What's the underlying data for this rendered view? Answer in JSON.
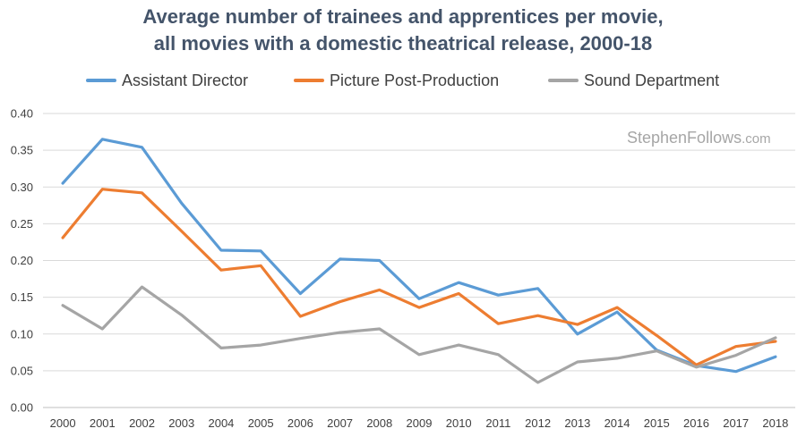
{
  "chart_data": {
    "type": "line",
    "title_line1": "Average number of trainees and apprentices per movie,",
    "title_line2": "all movies with a domestic theatrical release, 2000-18",
    "watermark": "StephenFollows",
    "watermark_suffix": ".com",
    "xlabel": "",
    "ylabel": "",
    "ylim": [
      0,
      0.4
    ],
    "yticks": [
      "0.00",
      "0.05",
      "0.10",
      "0.15",
      "0.20",
      "0.25",
      "0.30",
      "0.35",
      "0.40"
    ],
    "grid": true,
    "legend_position": "top",
    "categories": [
      "2000",
      "2001",
      "2002",
      "2003",
      "2004",
      "2005",
      "2006",
      "2007",
      "2008",
      "2009",
      "2010",
      "2011",
      "2012",
      "2013",
      "2014",
      "2015",
      "2016",
      "2017",
      "2018"
    ],
    "series": [
      {
        "name": "Assistant Director",
        "color": "#5b9bd5",
        "values": [
          0.305,
          0.365,
          0.354,
          0.278,
          0.214,
          0.213,
          0.155,
          0.202,
          0.2,
          0.148,
          0.17,
          0.153,
          0.162,
          0.1,
          0.13,
          0.078,
          0.057,
          0.049,
          0.069
        ]
      },
      {
        "name": "Picture Post-Production",
        "color": "#ed7d31",
        "values": [
          0.231,
          0.297,
          0.292,
          0.24,
          0.187,
          0.193,
          0.124,
          0.144,
          0.16,
          0.136,
          0.155,
          0.114,
          0.125,
          0.113,
          0.136,
          0.098,
          0.058,
          0.083,
          0.09
        ]
      },
      {
        "name": "Sound Department",
        "color": "#a5a5a5",
        "values": [
          0.139,
          0.107,
          0.164,
          0.126,
          0.081,
          0.085,
          0.094,
          0.102,
          0.107,
          0.072,
          0.085,
          0.072,
          0.034,
          0.062,
          0.067,
          0.077,
          0.055,
          0.071,
          0.095
        ]
      }
    ]
  }
}
